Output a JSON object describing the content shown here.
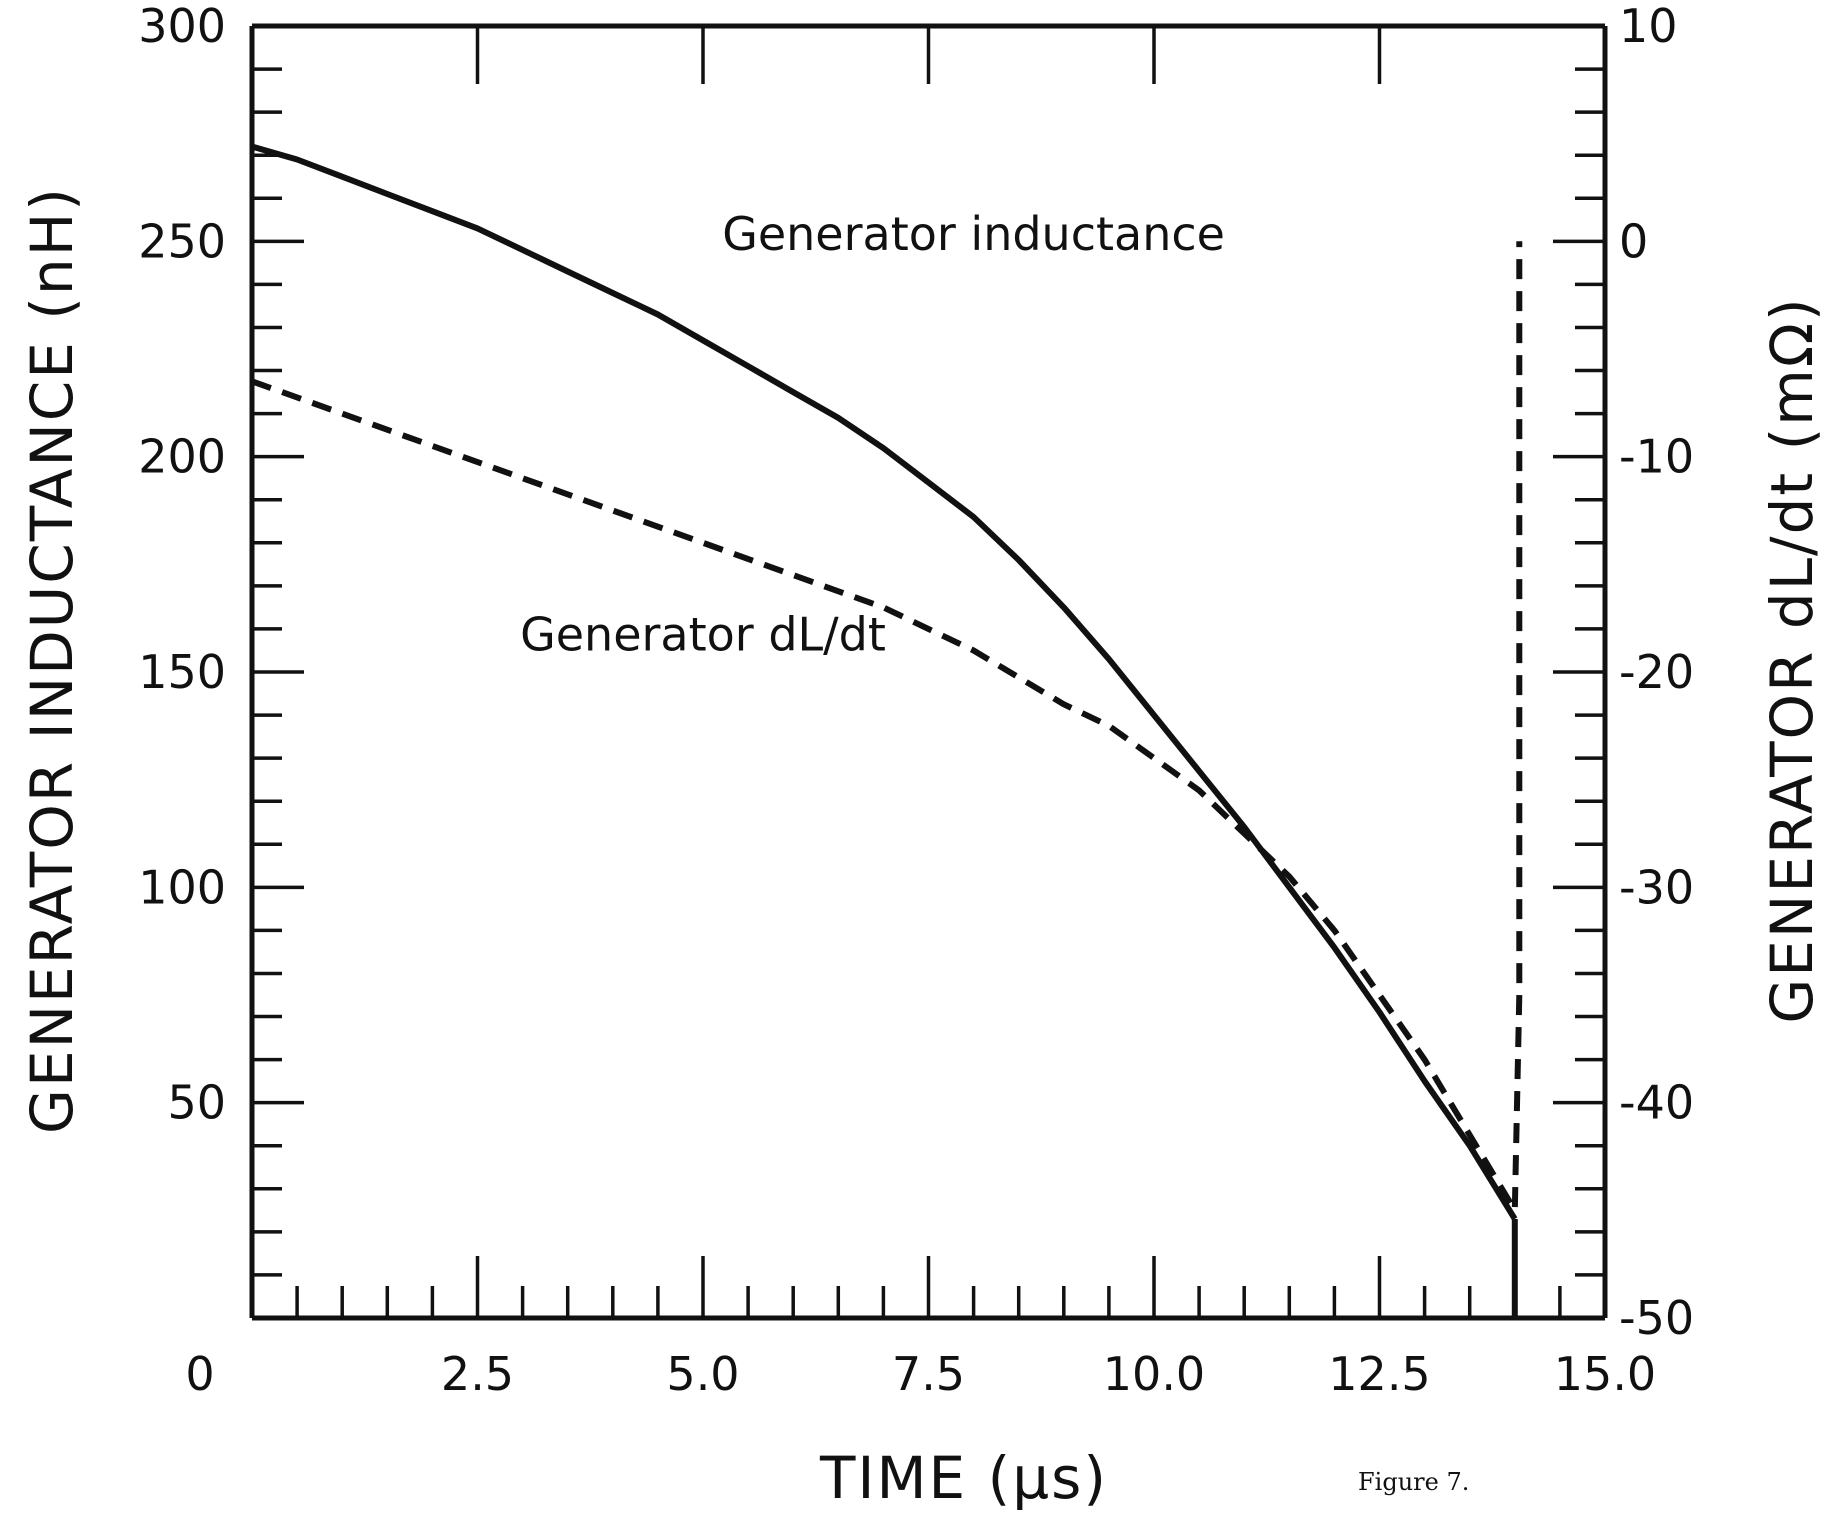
{
  "chart_data": {
    "type": "line",
    "xlabel": "TIME (μs)",
    "ylabel_left": "GENERATOR INDUCTANCE (nH)",
    "ylabel_right": "GENERATOR dL/dt (mΩ)",
    "xlim": [
      0,
      15
    ],
    "ylim_left": [
      0,
      300
    ],
    "ylim_right": [
      -50,
      10
    ],
    "x_tick_labels": [
      "0",
      "2.5",
      "5.0",
      "7.5",
      "10.0",
      "12.5",
      "15.0"
    ],
    "x_tick_values": [
      0,
      2.5,
      5.0,
      7.5,
      10.0,
      12.5,
      15.0
    ],
    "y_left_tick_labels": [
      "50",
      "100",
      "150",
      "200",
      "250",
      "300"
    ],
    "y_left_tick_values": [
      50,
      100,
      150,
      200,
      250,
      300
    ],
    "y_right_tick_labels": [
      "-50",
      "-40",
      "-30",
      "-20",
      "-10",
      "0",
      "10"
    ],
    "y_right_tick_values": [
      -50,
      -40,
      -30,
      -20,
      -10,
      0,
      10
    ],
    "series": [
      {
        "name": "Generator inductance",
        "axis": "left",
        "style": "solid",
        "x": [
          0,
          0.5,
          1.0,
          1.5,
          2.0,
          2.5,
          3.0,
          3.5,
          4.0,
          4.5,
          5.0,
          5.5,
          6.0,
          6.5,
          7.0,
          7.5,
          8.0,
          8.5,
          9.0,
          9.5,
          10.0,
          10.5,
          11.0,
          11.5,
          12.0,
          12.5,
          13.0,
          13.5,
          14.0
        ],
        "y": [
          272,
          269,
          265,
          261,
          257,
          253,
          248,
          243,
          238,
          233,
          227,
          221,
          215,
          209,
          202,
          194,
          186,
          176,
          165,
          153,
          140,
          127,
          114,
          100,
          86,
          71,
          55,
          40,
          23
        ]
      },
      {
        "name": "Generator dL/dt",
        "axis": "right",
        "style": "dashed",
        "x": [
          0,
          1.0,
          2.0,
          3.0,
          4.0,
          5.0,
          6.0,
          7.0,
          8.0,
          9.0,
          9.5,
          10.0,
          10.5,
          11.0,
          11.5,
          12.0,
          12.5,
          13.0,
          13.5,
          14.0,
          14.05,
          14.05
        ],
        "y": [
          -6.5,
          -8.0,
          -9.5,
          -11.0,
          -12.5,
          -14.0,
          -15.5,
          -17.0,
          -19.0,
          -21.5,
          -22.5,
          -24.0,
          -25.5,
          -27.5,
          -29.5,
          -32.0,
          -35.0,
          -38.0,
          -41.5,
          -45.0,
          -35.0,
          0
        ]
      }
    ],
    "annotations": [
      {
        "text": "Generator inductance",
        "x": 8.0,
        "y": 248
      },
      {
        "text": "Generator dL/dt",
        "x": 5.0,
        "y": 155
      }
    ],
    "caption": "Figure 7.",
    "grid": false,
    "legend": "none"
  }
}
